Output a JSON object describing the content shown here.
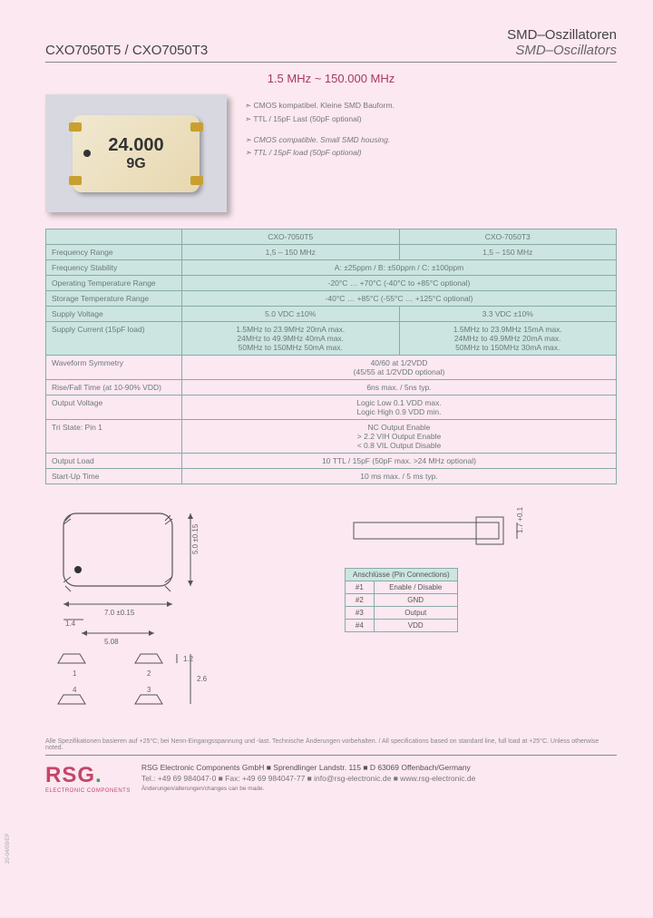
{
  "header": {
    "part": "CXO7050T5 / CXO7050T3",
    "title_de": "SMD–Oszillatoren",
    "title_en": "SMD–Oscillators"
  },
  "freq_range": "1.5 MHz ~ 150.000 MHz",
  "chip": {
    "line1": "24.000",
    "line2": "9G"
  },
  "features": {
    "l1": "➣   CMOS kompatibel. Kleine SMD Bauform.",
    "l2": "➣   TTL / 15pF Last (50pF optional)",
    "l3": "➣   CMOS compatible. Small SMD housing.",
    "l4": "➣   TTL / 15pF load (50pF optional)"
  },
  "spec": {
    "col1": "CXO-7050T5",
    "col2": "CXO-7050T3",
    "rows": [
      {
        "label": "Frequency Range",
        "c1": "1,5 – 150 MHz",
        "c2": "1,5 – 150 MHz",
        "shaded": true,
        "split": true
      },
      {
        "label": "Frequency Stability",
        "c": "A: ±25ppm / B: ±50ppm / C: ±100ppm",
        "shaded": true
      },
      {
        "label": "Operating Temperature Range",
        "c": "-20°C … +70°C (-40°C to +85°C optional)",
        "shaded": true
      },
      {
        "label": "Storage Temperature Range",
        "c": "-40°C … +85°C (-55°C … +125°C optional)",
        "shaded": true
      },
      {
        "label": "Supply Voltage",
        "c1": "5.0 VDC ±10%",
        "c2": "3.3 VDC ±10%",
        "shaded": true,
        "split": true
      },
      {
        "label": "Supply Current (15pF load)",
        "c1": "1.5MHz to 23.9MHz   20mA max.\n24MHz to 49.9MHz   40mA max.\n50MHz to 150MHz   50mA max.",
        "c2": "1.5MHz to 23.9MHz   15mA max.\n24MHz to 49.9MHz   20mA max.\n50MHz to 150MHz   30mA max.",
        "shaded": true,
        "split": true
      },
      {
        "label": "Waveform Symmetry",
        "c": "40/60 at 1/2VDD\n(45/55 at 1/2VDD optional)"
      },
      {
        "label": "Rise/Fall Time (at 10-90% VDD)",
        "c": "6ns max. / 5ns typ."
      },
      {
        "label": "Output Voltage",
        "c": "Logic Low          0.1 VDD max.\nLogic High         0.9 VDD min."
      },
      {
        "label": "Tri State: Pin 1",
        "c": "NC          Output Enable\n> 2.2 VIH    Output Enable\n< 0.8 VIL    Output Disable"
      },
      {
        "label": "Output Load",
        "c": "10 TTL / 15pF (50pF max. >24 MHz optional)"
      },
      {
        "label": "Start-Up Time",
        "c": "10 ms max. / 5 ms typ."
      }
    ]
  },
  "dims": {
    "w": "7.0 ±0.15",
    "h": "5.0 ±0.15",
    "h2": "1.7 +0.1",
    "p14": "1.4",
    "p508": "5.08",
    "p12": "1.2",
    "p26": "2.6",
    "pins": [
      "1",
      "2",
      "3",
      "4"
    ]
  },
  "pin_table": {
    "title": "Anschlüsse (Pin Connections)",
    "rows": [
      {
        "n": "#1",
        "f": "Enable / Disable"
      },
      {
        "n": "#2",
        "f": "GND"
      },
      {
        "n": "#3",
        "f": "Output"
      },
      {
        "n": "#4",
        "f": "VDD"
      }
    ]
  },
  "footnote": "Alle Spezifikationen basieren auf +25°C; bei Nenn-Eingangsspannung und -last. Technische Änderungen vorbehalten. / All specifications based on standard line, full load at +25°C. Unless otherwise noted.",
  "footer": {
    "logo": "RSG",
    "logo_sub": "ELECTRONIC COMPONENTS",
    "line1": "RSG Electronic Components GmbH  ■  Sprendlinger Landstr. 115  ■  D 63069 Offenbach/Germany",
    "line2": "Tel.: +49 69 984047-0  ■  Fax: +49 69 984047-77  ■  info@rsg-electronic.de  ■  www.rsg-electronic.de",
    "line3": "Änderungen/alterungen/changes can be made."
  },
  "side": "20-04/09/EP",
  "colors": {
    "bg": "#fce8f0",
    "accent": "#c4456a",
    "table_bg": "#cce5e0",
    "border": "#8aa"
  }
}
